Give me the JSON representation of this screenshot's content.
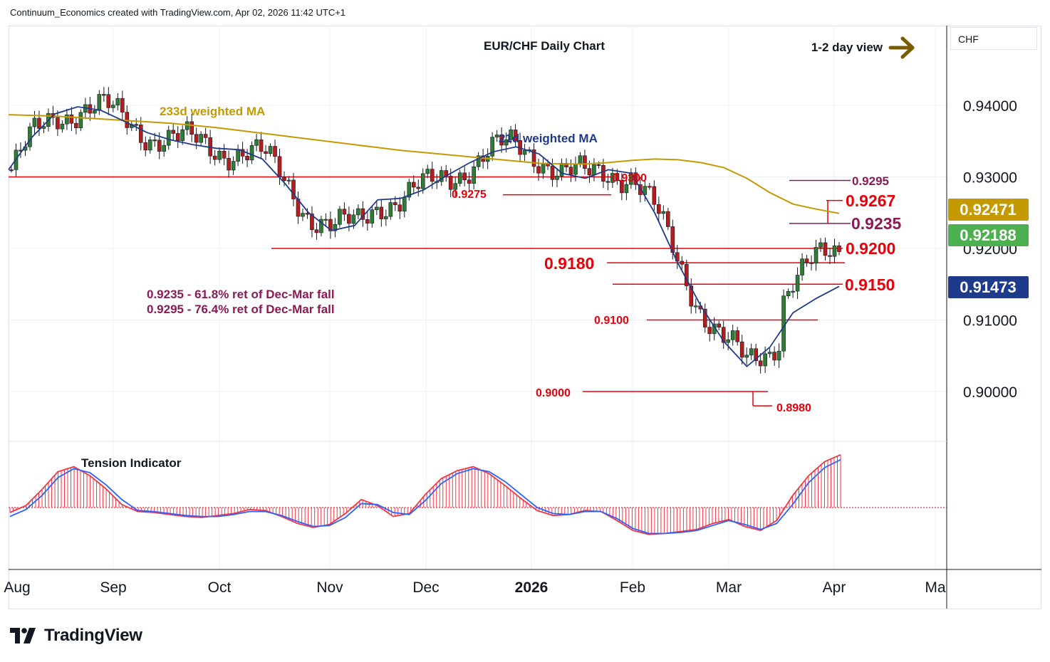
{
  "header": {
    "attribution": "Continuum_Economics created with TradingView.com, Apr 02, 2026 11:42 UTC+1"
  },
  "currency_label": "CHF",
  "brand": {
    "name": "TradingView"
  },
  "colors": {
    "resistance_line": "#e8000b",
    "support_label": "#e8000b",
    "fib_color": "#8b1a55",
    "ma233": "#c49a00",
    "ma21": "#1e3a8a",
    "up_candle": "#2e7d32",
    "down_candle": "#b71c1c",
    "tension_fill": "#f23645",
    "tension_signal": "#2962ff",
    "arrow": "#7a5c00"
  },
  "chart_data": [
    {
      "type": "candlestick",
      "title": "EUR/CHF Daily Chart",
      "view_label": "1-2 day view",
      "y_axis": {
        "ticks": [
          "0.94000",
          "0.93000",
          "0.92000",
          "0.91000",
          "0.90000"
        ],
        "range": [
          0.8935,
          0.9505
        ]
      },
      "x_axis": {
        "ticks": [
          "Aug",
          "Sep",
          "Oct",
          "Nov",
          "Dec",
          "2026",
          "Feb",
          "Mar",
          "Apr",
          "Ma"
        ]
      },
      "price_badges": [
        {
          "value": "0.92471",
          "series": "233d weighted MA",
          "color": "#c49a00"
        },
        {
          "value": "0.92188",
          "series": "last price",
          "color": "#4caf50"
        },
        {
          "value": "0.91473",
          "series": "21d weighted MA",
          "color": "#1e3a8a"
        }
      ],
      "series": [
        {
          "name": "233d weighted MA",
          "values": [
            0.9387,
            0.9386,
            0.9385,
            0.9383,
            0.9381,
            0.9379,
            0.9377,
            0.9375,
            0.9372,
            0.9369,
            0.9365,
            0.9361,
            0.9357,
            0.9353,
            0.9349,
            0.9345,
            0.9341,
            0.9337,
            0.9334,
            0.9331,
            0.9328,
            0.9325,
            0.9322,
            0.9319,
            0.9318,
            0.9318,
            0.932,
            0.9323,
            0.9325,
            0.9324,
            0.932,
            0.9313,
            0.9298,
            0.9278,
            0.9262,
            0.9255,
            0.9249
          ]
        },
        {
          "name": "21d weighted MA",
          "values": [
            0.931,
            0.9355,
            0.9388,
            0.9398,
            0.9393,
            0.9378,
            0.9362,
            0.9352,
            0.9345,
            0.934,
            0.9338,
            0.9325,
            0.929,
            0.925,
            0.9225,
            0.9232,
            0.9268,
            0.927,
            0.9282,
            0.9302,
            0.932,
            0.9335,
            0.9342,
            0.9332,
            0.9305,
            0.9298,
            0.931,
            0.9305,
            0.925,
            0.918,
            0.912,
            0.907,
            0.9035,
            0.9062,
            0.911,
            0.913,
            0.9147
          ]
        }
      ],
      "levels": [
        {
          "label": "0.9300",
          "value": 0.93
        },
        {
          "label": "0.9295",
          "value": 0.9295
        },
        {
          "label": "0.9275",
          "value": 0.9275
        },
        {
          "label": "0.9267",
          "value": 0.9267
        },
        {
          "label": "0.9235",
          "value": 0.9235
        },
        {
          "label": "0.9200",
          "value": 0.92
        },
        {
          "label": "0.9180",
          "value": 0.918
        },
        {
          "label": "0.9150",
          "value": 0.915
        },
        {
          "label": "0.9100",
          "value": 0.91
        },
        {
          "label": "0.9000",
          "value": 0.9
        },
        {
          "label": "0.8980",
          "value": 0.898
        }
      ],
      "annotations": [
        "233d weighted MA",
        "21d weighted MA",
        "0.9235 - 61.8% ret of Dec-Mar fall",
        "0.9295 - 76.4% ret of Dec-Mar fall"
      ],
      "grid": true
    },
    {
      "type": "area",
      "title": "Tension Indicator",
      "series": [
        {
          "name": "Tension",
          "values": [
            -0.5,
            0.2,
            1.8,
            3.6,
            4.1,
            3.2,
            1.9,
            0.3,
            -0.4,
            -0.5,
            -0.7,
            -0.9,
            -1.0,
            -0.8,
            -0.6,
            -0.2,
            -0.3,
            -0.9,
            -1.6,
            -2.0,
            -1.7,
            -0.6,
            0.8,
            0.2,
            -0.9,
            -0.6,
            1.3,
            2.9,
            3.7,
            4.1,
            3.4,
            2.2,
            0.9,
            -0.3,
            -0.8,
            -0.7,
            -0.3,
            -0.4,
            -1.3,
            -2.3,
            -2.7,
            -2.6,
            -2.4,
            -2.2,
            -1.6,
            -1.2,
            -1.9,
            -2.3,
            -1.3,
            1.2,
            3.2,
            4.6,
            5.3
          ]
        },
        {
          "name": "Signal",
          "values": [
            -0.9,
            -0.2,
            1.2,
            3.0,
            3.9,
            3.5,
            2.3,
            0.8,
            -0.3,
            -0.4,
            -0.6,
            -0.8,
            -0.9,
            -0.9,
            -0.7,
            -0.4,
            -0.4,
            -0.8,
            -1.4,
            -1.9,
            -1.8,
            -1.0,
            0.4,
            0.3,
            -0.5,
            -0.7,
            0.7,
            2.4,
            3.4,
            3.9,
            3.6,
            2.6,
            1.3,
            0.0,
            -0.6,
            -0.7,
            -0.4,
            -0.4,
            -1.1,
            -2.1,
            -2.6,
            -2.6,
            -2.5,
            -2.3,
            -1.8,
            -1.3,
            -1.7,
            -2.2,
            -1.6,
            0.3,
            2.5,
            4.0,
            4.8
          ]
        }
      ]
    }
  ]
}
